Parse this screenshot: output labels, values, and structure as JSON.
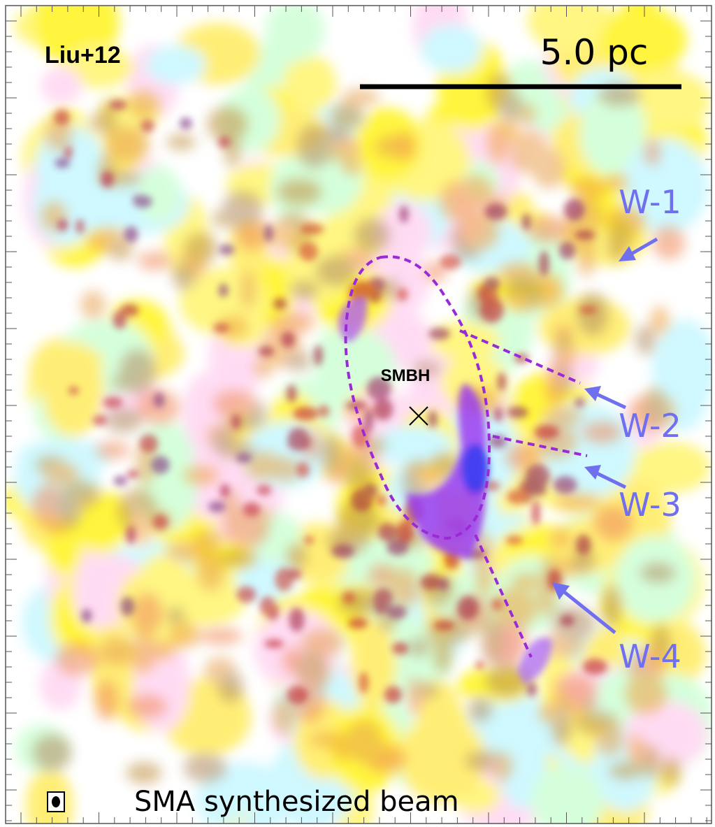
{
  "labels": {
    "source": "Liu+12",
    "scale_bar": "5.0 pc",
    "smbh": "SMBH",
    "beam": "SMA synthesized beam"
  },
  "features": [
    "W-1",
    "W-2",
    "W-3",
    "W-4"
  ]
}
